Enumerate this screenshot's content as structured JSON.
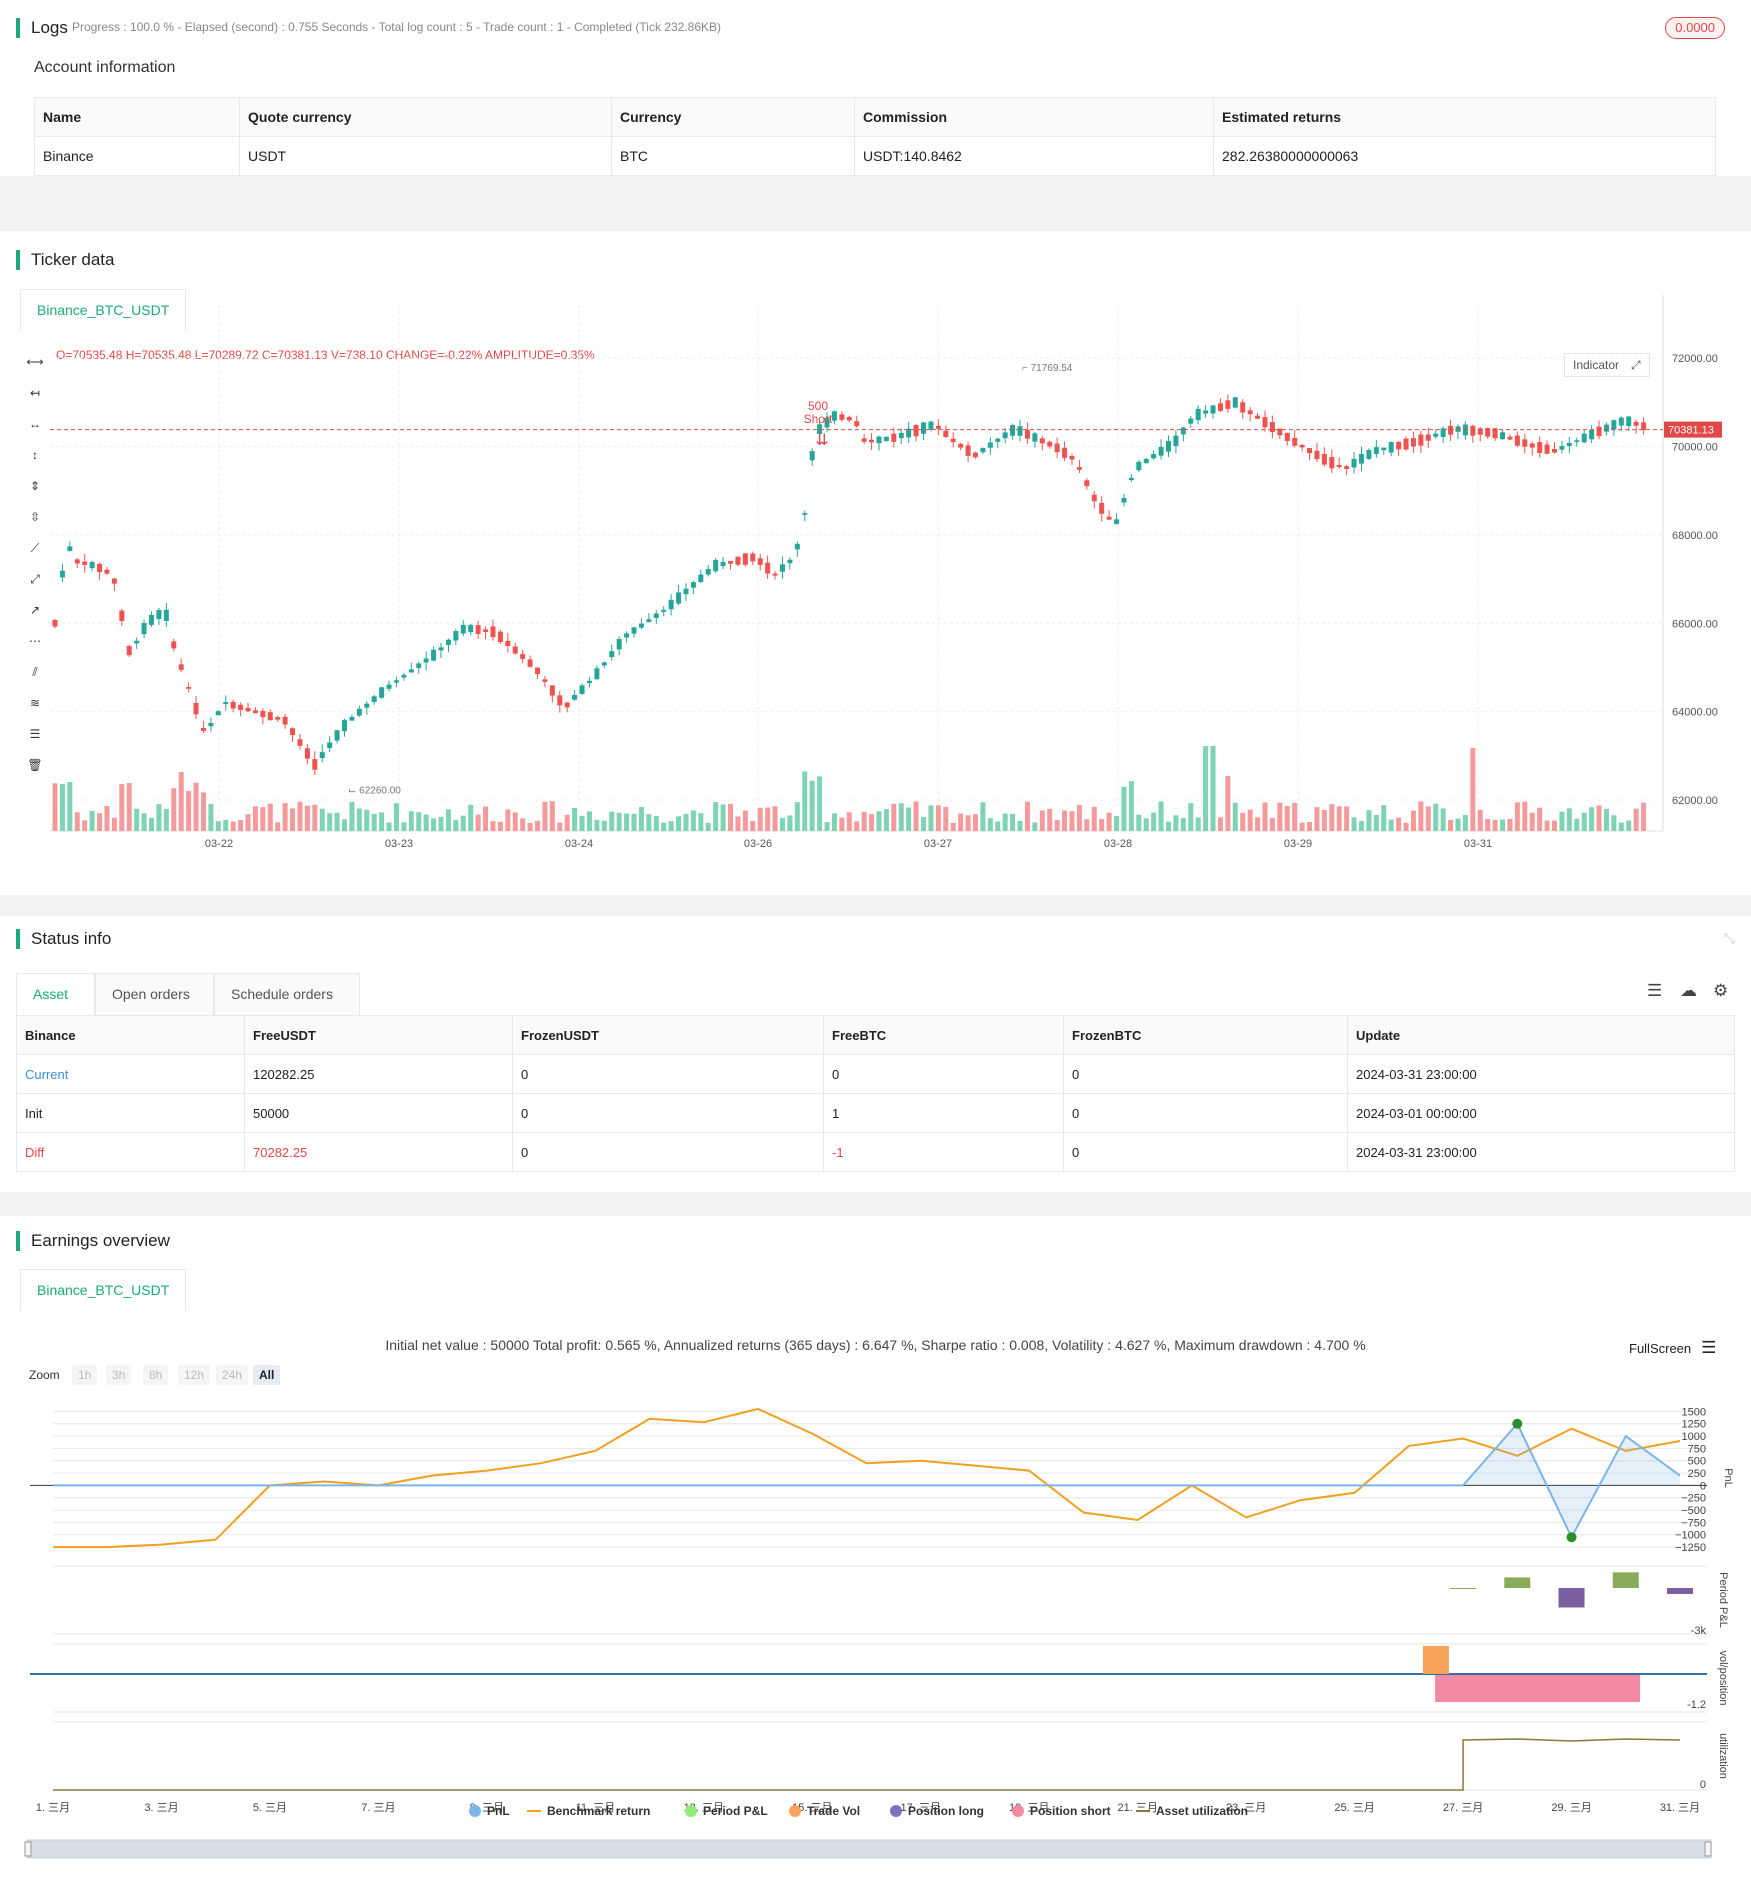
{
  "logs": {
    "title": "Logs",
    "progress": "Progress : 100.0 % - Elapsed (second) : 0.755  Seconds - Total log count : 5 - Trade count : 1 - Completed (Tick 232.86KB)",
    "badge": "0.0000"
  },
  "account": {
    "title": "Account information",
    "headers": [
      "Name",
      "Quote currency",
      "Currency",
      "Commission",
      "Estimated returns"
    ],
    "row": [
      "Binance",
      "USDT",
      "BTC",
      "USDT:140.8462",
      "282.26380000000063"
    ]
  },
  "ticker": {
    "title": "Ticker data",
    "tab": "Binance_BTC_USDT",
    "ohlc": "O=70535.48 H=70535.48 L=70289.72 C=70381.13 V=738.10 CHANGE=-0.22% AMPLITUDE=0.35%",
    "indicator": "Indicator",
    "last_price": "70381.13",
    "high_label": "71769.54",
    "low_label": "62260.00",
    "marker_qty": "500",
    "marker_text": "Short"
  },
  "chart_data": [
    {
      "type": "candlestick",
      "x_ticks": [
        "03-22",
        "03-23",
        "03-24",
        "03-26",
        "03-27",
        "03-28",
        "03-29",
        "03-31"
      ],
      "y_ticks": [
        "72000.00",
        "70000.00",
        "68000.00",
        "66000.00",
        "64000.00",
        "62000.00"
      ],
      "ylim": [
        61300,
        73200
      ],
      "last_price": 70381.13,
      "high": 71769.54,
      "low": 62260.0,
      "grid": true
    },
    {
      "type": "line",
      "title": "PnL",
      "x_ticks": [
        "1. 三月",
        "3. 三月",
        "5. 三月",
        "7. 三月",
        "9. 三月",
        "11. 三月",
        "13. 三月",
        "15. 三月",
        "17. 三月",
        "19. 三月",
        "21. 三月",
        "23. 三月",
        "25. 三月",
        "27. 三月",
        "29. 三月",
        "31. 三月"
      ],
      "y_ticks": [
        "1500",
        "1250",
        "1000",
        "750",
        "500",
        "250",
        "0",
        "−250",
        "−500",
        "−750",
        "−1000",
        "−1250"
      ],
      "ylim": [
        -1350,
        1650
      ],
      "series": [
        {
          "name": "PnL",
          "x": [
            1,
            27,
            28,
            29,
            30,
            31
          ],
          "values": [
            0,
            0,
            1250,
            -1050,
            1000,
            200
          ]
        },
        {
          "name": "Benchmark return",
          "x": [
            1,
            2,
            3,
            4,
            5,
            6,
            7,
            8,
            9,
            10,
            11,
            12,
            13,
            14,
            15,
            16,
            17,
            18,
            19,
            20,
            21,
            22,
            23,
            24,
            25,
            26,
            27,
            28,
            29,
            30,
            31
          ],
          "values": [
            -1250,
            -1250,
            -1200,
            -1100,
            0,
            80,
            0,
            200,
            300,
            450,
            700,
            1350,
            1280,
            1550,
            1050,
            450,
            500,
            400,
            300,
            -550,
            -700,
            0,
            -650,
            -300,
            -150,
            800,
            950,
            600,
            1150,
            700,
            900
          ]
        }
      ]
    },
    {
      "type": "bar",
      "title": "Period P&L",
      "y_ticks": [
        "-3k"
      ],
      "series": [
        {
          "name": "Period P&L",
          "x": [
            27,
            28,
            29,
            30,
            31
          ],
          "values": [
            -50,
            1250,
            -2300,
            1850,
            -700
          ]
        }
      ]
    },
    {
      "type": "bar",
      "title": "vol/position",
      "y_ticks": [
        "-1.2"
      ],
      "series": [
        {
          "name": "Trade Vol",
          "x": [
            26.5
          ],
          "values": [
            1
          ]
        },
        {
          "name": "Position short",
          "x": [
            27,
            31
          ],
          "values": [
            -1,
            -1
          ]
        }
      ]
    },
    {
      "type": "line",
      "title": "utilization",
      "y_ticks": [
        "0"
      ],
      "series": [
        {
          "name": "Asset utilization",
          "x": [
            1,
            27,
            27.01,
            31
          ],
          "values": [
            0,
            0,
            1,
            1
          ]
        }
      ]
    }
  ],
  "status": {
    "title": "Status info",
    "tabs": [
      "Asset",
      "Open orders",
      "Schedule orders"
    ],
    "headers": [
      "Binance",
      "FreeUSDT",
      "FrozenUSDT",
      "FreeBTC",
      "FrozenBTC",
      "Update"
    ],
    "rows": [
      [
        "Current",
        "120282.25",
        "0",
        "0",
        "0",
        "2024-03-31 23:00:00"
      ],
      [
        "Init",
        "50000",
        "0",
        "1",
        "0",
        "2024-03-01 00:00:00"
      ],
      [
        "Diff",
        "70282.25",
        "0",
        "-1",
        "0",
        "2024-03-31 23:00:00"
      ]
    ]
  },
  "earnings": {
    "title": "Earnings overview",
    "tab": "Binance_BTC_USDT",
    "stats": "Initial net value : 50000 Total profit: 0.565 %, Annualized returns (365 days) : 6.647 %, Sharpe ratio : 0.008, Volatility : 4.627 %, Maximum drawdown : 4.700 %",
    "fullscreen": "FullScreen",
    "zoom_label": "Zoom",
    "zoom": [
      "1h",
      "3h",
      "8h",
      "12h",
      "24h",
      "All"
    ],
    "legend": [
      "PnL",
      "Benchmark return",
      "Period P&L",
      "Trade Vol",
      "Position long",
      "Position short",
      "Asset utilization"
    ],
    "axis_titles": [
      "PnL",
      "Period P&L",
      "vol/position",
      "utilization"
    ]
  },
  "colors": {
    "accent": "#1aaa7a",
    "up": "#26a69a",
    "down": "#ef5350",
    "pnl": "#7cb5ec",
    "benchmark": "#f0a01e",
    "short": "#f48aa2",
    "long": "#7e6fc9",
    "trade": "#f7a35c",
    "util": "#8a7a3a"
  }
}
